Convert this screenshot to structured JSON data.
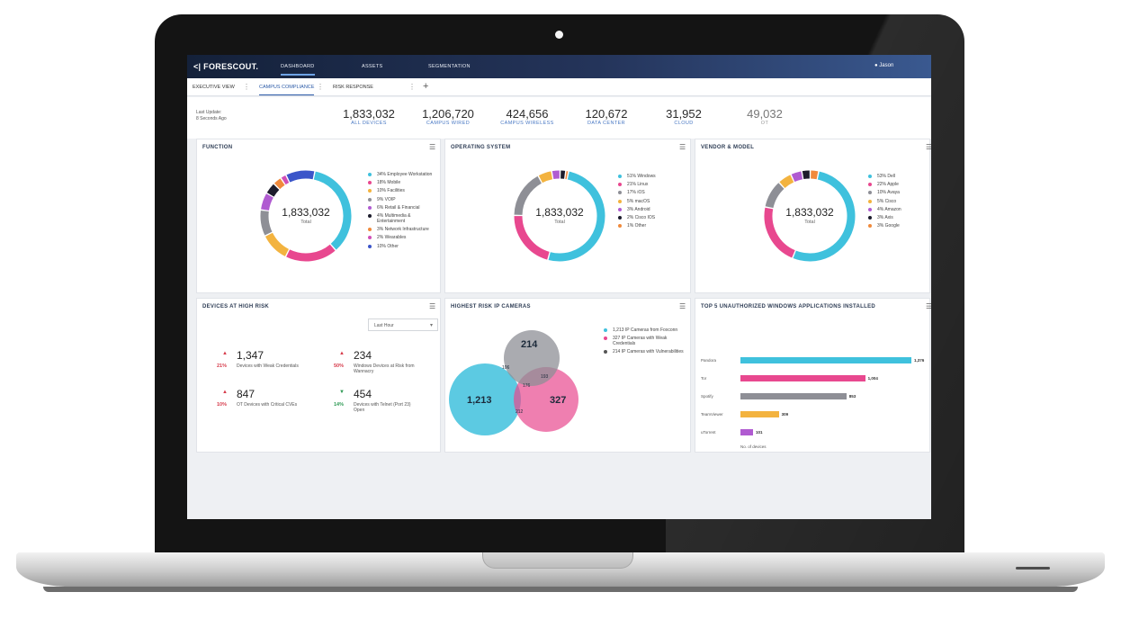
{
  "nav": {
    "logo": "<| FORESCOUT.",
    "tabs": [
      {
        "label": "DASHBOARD",
        "active": true
      },
      {
        "label": "ASSETS",
        "active": false
      },
      {
        "label": "SEGMENTATION",
        "active": false
      }
    ],
    "user": "Jason"
  },
  "view_tabs": [
    {
      "label": "EXECUTIVE VIEW"
    },
    {
      "label": "CAMPUS COMPLIANCE",
      "active": true
    },
    {
      "label": "RISK RESPONSE"
    }
  ],
  "view_add": "+",
  "summary": {
    "updated_line1": "Last Update:",
    "updated_line2": "8 Seconds Ago",
    "stats": [
      {
        "value": "1,833,032",
        "label": "ALL DEVICES"
      },
      {
        "value": "1,206,720",
        "label": "CAMPUS WIRED"
      },
      {
        "value": "424,656",
        "label": "CAMPUS WIRELESS"
      },
      {
        "value": "120,672",
        "label": "DATA CENTER"
      },
      {
        "value": "31,952",
        "label": "CLOUD"
      },
      {
        "value": "49,032",
        "label": "OT"
      }
    ]
  },
  "function_card": {
    "title": "FUNCTION",
    "total": "1,833,032",
    "total_label": "Total",
    "legend": [
      {
        "label": "34% Employee Workstation",
        "color": "#3fc1dd",
        "value": 34
      },
      {
        "label": "18% Mobile",
        "color": "#e8488f",
        "value": 18
      },
      {
        "label": "10% Facilities",
        "color": "#f3b33f",
        "value": 10
      },
      {
        "label": "9% VOIP",
        "color": "#8e8f96",
        "value": 9
      },
      {
        "label": "6% Retail & Financial",
        "color": "#b05bd1",
        "value": 6
      },
      {
        "label": "4% Multimedia & Entertainment",
        "color": "#1c1c2c",
        "value": 4
      },
      {
        "label": "3% Network Infrastructure",
        "color": "#f08a3c",
        "value": 3
      },
      {
        "label": "2% Wearables",
        "color": "#d04fb8",
        "value": 2
      },
      {
        "label": "10% Other",
        "color": "#3b55c9",
        "value": 10
      }
    ]
  },
  "os_card": {
    "title": "OPERATING SYSTEM",
    "total": "1,833,032",
    "total_label": "Total",
    "legend": [
      {
        "label": "51% Windows",
        "color": "#3fc1dd",
        "value": 51
      },
      {
        "label": "21% Linux",
        "color": "#e8488f",
        "value": 21
      },
      {
        "label": "17% iOS",
        "color": "#8e8f96",
        "value": 17
      },
      {
        "label": "5% macOS",
        "color": "#f3b33f",
        "value": 5
      },
      {
        "label": "3% Android",
        "color": "#b05bd1",
        "value": 3
      },
      {
        "label": "2% Cisco IOS",
        "color": "#1c1c2c",
        "value": 2
      },
      {
        "label": "1% Other",
        "color": "#f08a3c",
        "value": 1
      }
    ]
  },
  "vendor_card": {
    "title": "VENDOR & MODEL",
    "total": "1,833,032",
    "total_label": "Total",
    "legend": [
      {
        "label": "53% Dell",
        "color": "#3fc1dd",
        "value": 53
      },
      {
        "label": "22% Apple",
        "color": "#e8488f",
        "value": 22
      },
      {
        "label": "10% Avaya",
        "color": "#8e8f96",
        "value": 10
      },
      {
        "label": "5% Cisco",
        "color": "#f3b33f",
        "value": 5
      },
      {
        "label": "4% Amazon",
        "color": "#b05bd1",
        "value": 4
      },
      {
        "label": "3% Axis",
        "color": "#1c1c2c",
        "value": 3
      },
      {
        "label": "3% Google",
        "color": "#f08a3c",
        "value": 3
      }
    ]
  },
  "risk_card": {
    "title": "DEVICES AT HIGH RISK",
    "filter": "Last Hour",
    "items": [
      {
        "value": "1,347",
        "pct": "21%",
        "direction": "up",
        "desc": "Devices with Weak Credentials"
      },
      {
        "value": "234",
        "pct": "50%",
        "direction": "up",
        "desc": "Windows Devices at Risk from Wannacry"
      },
      {
        "value": "847",
        "pct": "10%",
        "direction": "up",
        "desc": "OT Devices with Critical CVEs"
      },
      {
        "value": "454",
        "pct": "14%",
        "direction": "down",
        "desc": "Devices with Telnet (Port 23) Open"
      }
    ],
    "colors": {
      "up": "#d63b4b",
      "down": "#2f9a55"
    }
  },
  "camera_card": {
    "title": "HIGHEST RISK IP CAMERAS",
    "circles": [
      {
        "value": "1,213",
        "color": "#3fc1dd"
      },
      {
        "value": "327",
        "color": "#e8488f"
      },
      {
        "value": "214",
        "color": "#8e8f96"
      }
    ],
    "overlaps": {
      "blue_gray": "106",
      "pink_gray": "193",
      "blue_pink": "212",
      "center": "176"
    },
    "legend": [
      {
        "label": "1,213 IP Cameras from Foxconn",
        "color": "#3fc1dd"
      },
      {
        "label": "327 IP Cameras with Weak Credentials",
        "color": "#e8488f"
      },
      {
        "label": "214 IP Cameras with Vulnerabilities",
        "color": "#555555"
      }
    ]
  },
  "apps_card": {
    "title": "TOP 5 UNAUTHORIZED WINDOWS APPLICATIONS INSTALLED",
    "bars": [
      {
        "label": "Pandora",
        "value": 1376,
        "display": "1,376",
        "color": "#3fc1dd"
      },
      {
        "label": "Tor",
        "value": 1004,
        "display": "1,004",
        "color": "#e8488f"
      },
      {
        "label": "Spotify",
        "value": 853,
        "display": "853",
        "color": "#8e8f96"
      },
      {
        "label": "TeamViewer",
        "value": 309,
        "display": "309",
        "color": "#f3b33f"
      },
      {
        "label": "uTorrent",
        "value": 101,
        "display": "101",
        "color": "#b05bd1"
      }
    ],
    "max": 1376,
    "footer": "No. of devices"
  }
}
